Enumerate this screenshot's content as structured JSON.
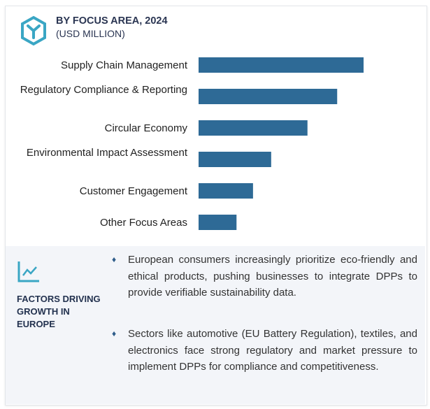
{
  "header": {
    "title": "BY FOCUS AREA, 2024",
    "subtitle": "(USD MILLION)",
    "icon": "hexagon-logo-icon"
  },
  "chart_data": {
    "type": "bar",
    "orientation": "horizontal",
    "title": "BY FOCUS AREA, 2024",
    "ylabel": "(USD MILLION)",
    "categories": [
      "Supply Chain Management",
      "Regulatory Compliance & Reporting",
      "Circular Economy",
      "Environmental Impact Assessment",
      "Customer Engagement",
      "Other Focus Areas"
    ],
    "values": [
      100,
      84,
      66,
      44,
      33,
      23
    ],
    "value_note": "relative, no axis shown",
    "bar_color": "#2e6a96",
    "grid": false
  },
  "factors": {
    "icon": "line-chart-icon",
    "title": "FACTORS DRIVING GROWTH IN EUROPE",
    "bullets": [
      "European consumers increasingly prioritize eco-friendly and ethical products, pushing businesses to integrate DPPs to provide verifiable sustainability data.",
      "Sectors like automotive (EU Battery Regulation), textiles, and electronics face strong regulatory and market pressure to implement DPPs for compliance and competitiveness."
    ],
    "bullet_glyph": "♦"
  }
}
